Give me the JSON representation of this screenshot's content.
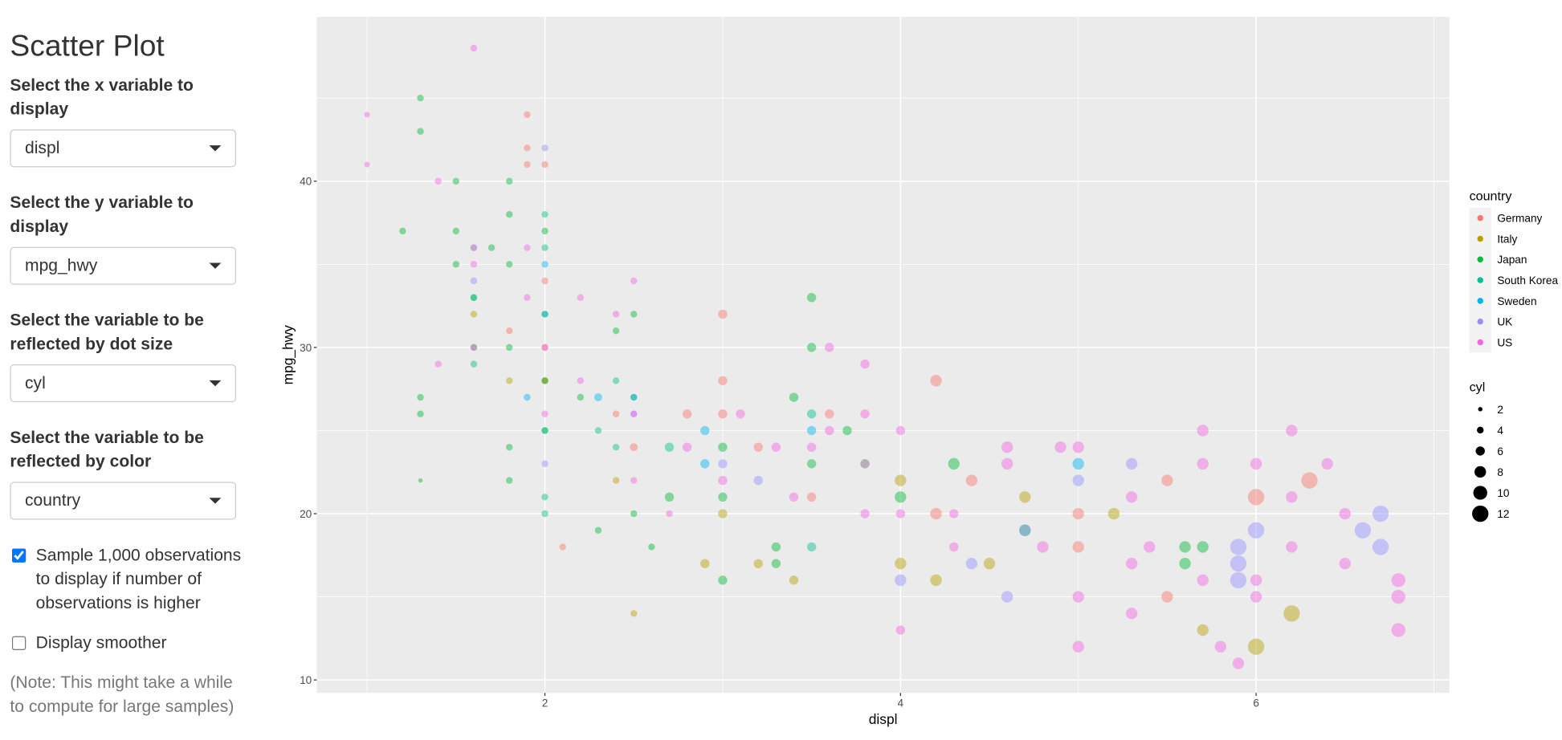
{
  "sidebar": {
    "title": "Scatter Plot",
    "controls": [
      {
        "label": "Select the x variable to display",
        "value": "displ"
      },
      {
        "label": "Select the y variable to display",
        "value": "mpg_hwy"
      },
      {
        "label": "Select the variable to be reflected by dot size",
        "value": "cyl"
      },
      {
        "label": "Select the variable to be reflected by color",
        "value": "country"
      }
    ],
    "checkboxes": [
      {
        "label": "Sample 1,000 observations to display if number of observations is higher",
        "checked": true
      },
      {
        "label": "Display smoother",
        "checked": false
      }
    ],
    "note": "(Note: This might take a while to compute for large samples)"
  },
  "chart_data": {
    "type": "scatter",
    "x_label": "displ",
    "y_label": "mpg_hwy",
    "xlim": [
      0.717,
      7.087
    ],
    "ylim": [
      9.22,
      49.88
    ],
    "xticks": [
      2,
      4,
      6
    ],
    "yticks": [
      10,
      20,
      30,
      40
    ],
    "x_minor_ticks": [
      1,
      3,
      5,
      7
    ],
    "y_minor_ticks": [
      15,
      25,
      35,
      45
    ],
    "grid": true,
    "point_opacity": 0.45,
    "legend_title": "country",
    "size_title": "cyl",
    "size_legend": [
      2,
      4,
      6,
      8,
      10,
      12
    ],
    "series": [
      {
        "name": "Germany",
        "color": "#F8766D",
        "x": [
          1.9,
          1.9,
          1.9,
          2.0,
          2.0,
          1.8,
          2.0,
          2.0,
          2.1,
          2.4,
          2.8,
          3.0,
          3.0,
          3.2,
          3.5,
          3.6,
          4.2,
          4.4,
          4.2,
          5.0,
          5.0,
          5.5,
          5.5,
          6.0,
          6.3,
          3.0,
          1.6,
          2.5
        ],
        "y": [
          44,
          42,
          41,
          41,
          34,
          31,
          30,
          28,
          18,
          26,
          26,
          28,
          26,
          24,
          21,
          26,
          28,
          22,
          20,
          18,
          20,
          22,
          15,
          21,
          22,
          32,
          36,
          24
        ],
        "sizes": [
          4,
          4,
          4,
          4,
          4,
          4,
          4,
          4,
          4,
          4,
          6,
          6,
          6,
          6,
          6,
          6,
          8,
          8,
          8,
          8,
          8,
          8,
          8,
          12,
          12,
          6,
          4,
          5
        ]
      },
      {
        "name": "Italy",
        "color": "#B79F00",
        "x": [
          1.6,
          1.8,
          2.0,
          2.4,
          2.5,
          2.9,
          3.0,
          3.4,
          3.8,
          4.0,
          4.0,
          4.2,
          4.7,
          5.2,
          5.7,
          6.0,
          6.2,
          4.5,
          3.2
        ],
        "y": [
          32,
          28,
          28,
          22,
          14,
          17,
          20,
          16,
          23,
          17,
          22,
          16,
          21,
          20,
          13,
          12,
          14,
          17,
          17
        ],
        "sizes": [
          4,
          4,
          4,
          4,
          4,
          6,
          6,
          6,
          6,
          8,
          8,
          8,
          8,
          8,
          8,
          12,
          12,
          8,
          6
        ]
      },
      {
        "name": "Japan",
        "color": "#00BA38",
        "x": [
          1.3,
          1.3,
          1.5,
          1.2,
          1.5,
          1.5,
          1.6,
          1.6,
          1.3,
          1.3,
          1.3,
          1.8,
          1.8,
          1.8,
          1.8,
          1.8,
          1.8,
          2.0,
          2.0,
          2.0,
          2.0,
          2.2,
          2.3,
          2.4,
          2.5,
          2.5,
          2.5,
          2.6,
          2.7,
          3.0,
          3.0,
          3.0,
          3.3,
          3.4,
          3.5,
          3.5,
          3.5,
          3.7,
          4.0,
          4.3,
          4.7,
          5.6,
          5.6,
          5.7,
          1.7,
          3.3
        ],
        "y": [
          45,
          43,
          40,
          37,
          37,
          35,
          33,
          30,
          27,
          26,
          22,
          40,
          38,
          35,
          30,
          24,
          22,
          37,
          32,
          28,
          25,
          27,
          19,
          31,
          32,
          27,
          20,
          18,
          21,
          24,
          21,
          16,
          17,
          27,
          33,
          30,
          23,
          25,
          21,
          23,
          19,
          18,
          17,
          18,
          36,
          18
        ],
        "sizes": [
          4,
          4,
          4,
          4,
          4,
          4,
          4,
          4,
          4,
          4,
          2,
          4,
          4,
          4,
          4,
          4,
          4,
          4,
          4,
          4,
          4,
          4,
          4,
          4,
          4,
          4,
          4,
          4,
          6,
          6,
          6,
          6,
          6,
          6,
          6,
          6,
          6,
          6,
          8,
          8,
          8,
          8,
          8,
          8,
          4,
          6
        ]
      },
      {
        "name": "South Korea",
        "color": "#00C08B",
        "x": [
          1.6,
          1.6,
          2.0,
          2.0,
          2.0,
          2.0,
          2.3,
          2.4,
          2.4,
          3.5,
          3.5,
          2.7,
          2.0
        ],
        "y": [
          29,
          33,
          38,
          36,
          20,
          21,
          25,
          24,
          28,
          18,
          26,
          24,
          25
        ],
        "sizes": [
          4,
          4,
          4,
          4,
          4,
          4,
          4,
          4,
          4,
          6,
          6,
          6,
          4
        ]
      },
      {
        "name": "Sweden",
        "color": "#00B4F0",
        "x": [
          2.0,
          2.0,
          1.9,
          2.3,
          2.5,
          2.9,
          2.9,
          3.5,
          5.0
        ],
        "y": [
          35,
          32,
          27,
          27,
          27,
          23,
          25,
          25,
          23
        ],
        "sizes": [
          4,
          4,
          4,
          5,
          4,
          6,
          6,
          6,
          8
        ]
      },
      {
        "name": "UK",
        "color": "#9590FF",
        "x": [
          2.0,
          1.6,
          1.6,
          2.0,
          2.5,
          3.0,
          3.2,
          3.8,
          4.0,
          4.4,
          4.6,
          4.7,
          5.0,
          5.3,
          5.9,
          5.9,
          6.0,
          6.6,
          6.7,
          6.7,
          5.9
        ],
        "y": [
          42,
          36,
          34,
          23,
          26,
          23,
          22,
          23,
          16,
          17,
          15,
          19,
          22,
          23,
          18,
          17,
          19,
          19,
          18,
          20,
          16
        ],
        "sizes": [
          4,
          4,
          4,
          4,
          4,
          6,
          6,
          6,
          8,
          8,
          8,
          8,
          8,
          8,
          12,
          12,
          12,
          12,
          12,
          12,
          12
        ]
      },
      {
        "name": "US",
        "color": "#F564E3",
        "x": [
          1.0,
          1.0,
          1.6,
          1.4,
          1.4,
          1.6,
          1.6,
          1.9,
          1.9,
          2.0,
          2.0,
          2.2,
          2.2,
          2.4,
          2.5,
          2.5,
          2.5,
          2.7,
          2.8,
          3.0,
          3.3,
          3.5,
          3.6,
          3.6,
          3.8,
          3.8,
          3.8,
          4.0,
          4.0,
          4.0,
          4.3,
          4.3,
          4.6,
          4.6,
          4.8,
          4.9,
          5.0,
          5.0,
          5.0,
          5.3,
          5.3,
          5.3,
          5.4,
          5.7,
          5.7,
          5.7,
          5.8,
          5.9,
          6.0,
          6.0,
          6.0,
          6.2,
          6.2,
          6.2,
          6.4,
          6.5,
          6.5,
          6.8,
          6.8,
          6.8,
          3.1,
          3.4
        ],
        "y": [
          44,
          41,
          48,
          40,
          29,
          30,
          35,
          36,
          33,
          30,
          26,
          33,
          28,
          32,
          34,
          22,
          26,
          20,
          24,
          22,
          24,
          24,
          30,
          25,
          26,
          29,
          20,
          25,
          13,
          20,
          20,
          18,
          23,
          24,
          18,
          24,
          24,
          15,
          12,
          17,
          21,
          14,
          18,
          25,
          23,
          16,
          12,
          11,
          23,
          15,
          16,
          25,
          21,
          18,
          23,
          20,
          17,
          16,
          15,
          13,
          26,
          21
        ],
        "sizes": [
          3,
          3,
          4,
          4,
          4,
          4,
          4,
          4,
          4,
          4,
          4,
          4,
          4,
          4,
          4,
          4,
          4,
          4,
          6,
          6,
          6,
          6,
          6,
          6,
          6,
          6,
          6,
          6,
          6,
          6,
          6,
          6,
          8,
          8,
          8,
          8,
          8,
          8,
          8,
          8,
          8,
          8,
          8,
          8,
          8,
          8,
          8,
          8,
          8,
          8,
          8,
          8,
          8,
          8,
          8,
          8,
          8,
          10,
          10,
          10,
          6,
          6
        ]
      }
    ]
  }
}
